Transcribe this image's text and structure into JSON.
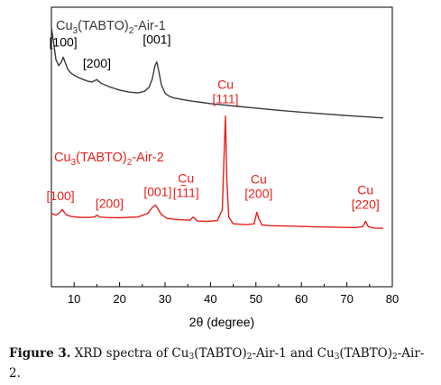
{
  "chart_data": {
    "type": "line",
    "xlabel": "2θ (degree)",
    "ylabel": "",
    "xlim": [
      5,
      80
    ],
    "x_ticks": [
      "10",
      "20",
      "30",
      "40",
      "50",
      "60",
      "70",
      "80"
    ],
    "y_ticks": "none",
    "grid": false,
    "legend": "none",
    "series": [
      {
        "name": "Cu3(TABTO)2-Air-1",
        "label_parts": {
          "base": "Cu",
          "sub1": "3",
          "mid": "(TABTO)",
          "sub2": "2",
          "tail": "-Air-1"
        },
        "color": "#3a3a3a",
        "x": [
          5,
          5.6,
          6.0,
          6.6,
          7.2,
          7.6,
          8.0,
          8.6,
          9.2,
          10,
          11,
          12,
          13,
          14,
          14.6,
          15,
          15.5,
          16,
          17,
          18,
          20,
          22,
          24,
          25.5,
          26.5,
          27.2,
          27.8,
          28.2,
          28.6,
          29.2,
          30,
          31,
          32,
          34,
          36,
          38,
          40,
          45,
          50,
          55,
          60,
          65,
          70,
          75,
          78
        ],
        "y": [
          1.08,
          1.0,
          0.945,
          0.92,
          0.935,
          0.955,
          0.935,
          0.905,
          0.89,
          0.88,
          0.87,
          0.862,
          0.855,
          0.852,
          0.858,
          0.862,
          0.853,
          0.846,
          0.838,
          0.83,
          0.818,
          0.81,
          0.806,
          0.813,
          0.83,
          0.865,
          0.92,
          0.935,
          0.9,
          0.84,
          0.805,
          0.792,
          0.785,
          0.778,
          0.772,
          0.767,
          0.762,
          0.752,
          0.743,
          0.734,
          0.726,
          0.719,
          0.712,
          0.706,
          0.702
        ]
      },
      {
        "name": "Cu3(TABTO)2-Air-2",
        "label_parts": {
          "base": "Cu",
          "sub1": "3",
          "mid": "(TABTO)",
          "sub2": "2",
          "tail": "-Air-2"
        },
        "color": "#e8201b",
        "x": [
          5,
          6.0,
          6.8,
          7.4,
          7.8,
          8.4,
          9.5,
          11,
          13,
          14.5,
          15,
          15.6,
          17,
          20,
          24,
          26.2,
          27.2,
          27.9,
          28.4,
          29.2,
          30.5,
          33,
          35.5,
          36.2,
          36.6,
          37.2,
          39,
          41.5,
          42.6,
          43.0,
          43.3,
          43.6,
          44.0,
          45,
          48,
          49.6,
          50.2,
          50.6,
          51.3,
          53,
          58,
          63,
          68,
          72,
          73.5,
          74.1,
          74.7,
          76,
          78
        ],
        "y": [
          0.305,
          0.298,
          0.308,
          0.322,
          0.31,
          0.298,
          0.292,
          0.289,
          0.288,
          0.29,
          0.298,
          0.29,
          0.288,
          0.287,
          0.29,
          0.305,
          0.33,
          0.34,
          0.325,
          0.3,
          0.284,
          0.279,
          0.277,
          0.29,
          0.282,
          0.273,
          0.272,
          0.275,
          0.32,
          0.55,
          0.71,
          0.45,
          0.29,
          0.262,
          0.258,
          0.262,
          0.31,
          0.285,
          0.257,
          0.254,
          0.252,
          0.249,
          0.247,
          0.246,
          0.25,
          0.272,
          0.25,
          0.244,
          0.243
        ]
      }
    ],
    "peak_labels": [
      {
        "series": 0,
        "text": "[100]",
        "x": 7.6,
        "y": 0.955
      },
      {
        "series": 0,
        "text": "[200]",
        "x": 15.0,
        "y": 0.862
      },
      {
        "series": 0,
        "text": "[001]",
        "x": 28.2,
        "y": 0.935
      },
      {
        "series": 1,
        "text": "[100]",
        "x": 7.4,
        "y": 0.322
      },
      {
        "series": 1,
        "text": "[200]",
        "x": 15.0,
        "y": 0.298
      },
      {
        "series": 1,
        "text": "[001]",
        "x": 28.0,
        "y": 0.34
      },
      {
        "series": 1,
        "text": "Cu",
        "text2": "[111]",
        "overbar": "1",
        "x": 36.2,
        "y": 0.29
      },
      {
        "series": 1,
        "text": "Cu",
        "text2": "[111]",
        "x": 43.3,
        "y": 0.71
      },
      {
        "series": 1,
        "text": "Cu",
        "text2": "[200]",
        "x": 50.2,
        "y": 0.31
      },
      {
        "series": 1,
        "text": "Cu",
        "text2": "[220]",
        "x": 74.1,
        "y": 0.272
      }
    ]
  },
  "caption": {
    "lead": "Figure 3.",
    "p1": " XRD spectra of Cu",
    "s1": "3",
    "p2": "(TABTO)",
    "s2": "2",
    "p3": "-Air-1 and Cu",
    "s3": "3",
    "p4": "(TABTO)",
    "s4": "2",
    "p5": "-Air-2."
  }
}
